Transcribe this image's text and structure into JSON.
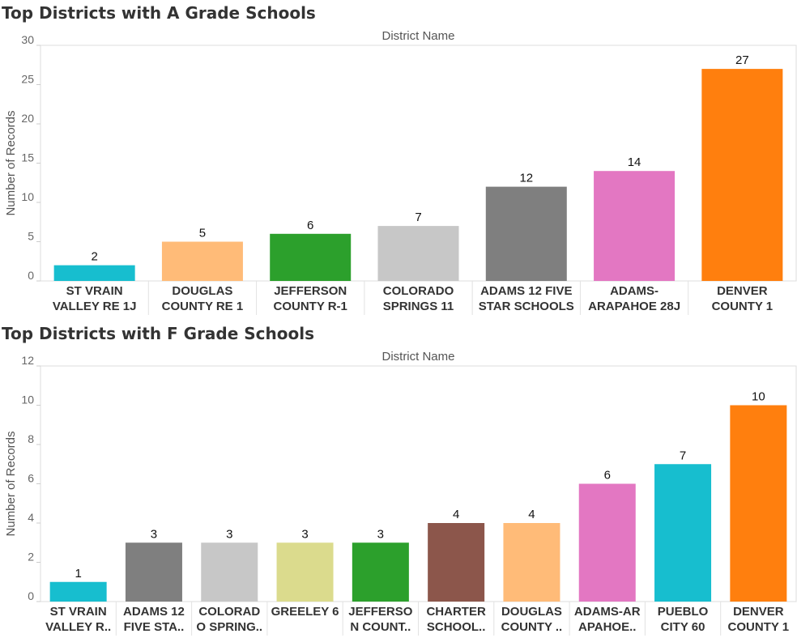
{
  "chart_data": [
    {
      "type": "bar",
      "title": "Top Districts with A Grade Schools",
      "xlabel": "District Name",
      "ylabel": "Number of Records",
      "ylim": [
        0,
        30
      ],
      "yticks": [
        0,
        5,
        10,
        15,
        20,
        25,
        30
      ],
      "grid": false,
      "categories": [
        [
          "ST VRAIN",
          "VALLEY RE 1J"
        ],
        [
          "DOUGLAS",
          "COUNTY RE 1"
        ],
        [
          "JEFFERSON",
          "COUNTY R-1"
        ],
        [
          "COLORADO",
          "SPRINGS 11"
        ],
        [
          "ADAMS 12 FIVE",
          "STAR SCHOOLS"
        ],
        [
          "ADAMS-",
          "ARAPAHOE 28J"
        ],
        [
          "DENVER",
          "COUNTY 1"
        ]
      ],
      "values": [
        2,
        5,
        6,
        7,
        12,
        14,
        27
      ],
      "colors": [
        "#17becf",
        "#ffbb78",
        "#2ca02c",
        "#c7c7c7",
        "#7f7f7f",
        "#e377c2",
        "#ff7f0e"
      ]
    },
    {
      "type": "bar",
      "title": "Top Districts with F Grade Schools",
      "xlabel": "District Name",
      "ylabel": "Number of Records",
      "ylim": [
        0,
        12
      ],
      "yticks": [
        0,
        2,
        4,
        6,
        8,
        10,
        12
      ],
      "grid": false,
      "categories": [
        [
          "ST VRAIN",
          "VALLEY R.."
        ],
        [
          "ADAMS 12",
          "FIVE STA.."
        ],
        [
          "COLORAD",
          "O SPRING.."
        ],
        [
          "GREELEY 6"
        ],
        [
          "JEFFERSO",
          "N COUNT.."
        ],
        [
          "CHARTER",
          "SCHOOL.."
        ],
        [
          "DOUGLAS",
          "COUNTY .."
        ],
        [
          "ADAMS-AR",
          "APAHOE.."
        ],
        [
          "PUEBLO",
          "CITY 60"
        ],
        [
          "DENVER",
          "COUNTY 1"
        ]
      ],
      "values": [
        1,
        3,
        3,
        3,
        3,
        4,
        4,
        6,
        7,
        10
      ],
      "colors": [
        "#17becf",
        "#7f7f7f",
        "#c7c7c7",
        "#dbdb8d",
        "#2ca02c",
        "#8c564b",
        "#ffbb78",
        "#e377c2",
        "#17becf",
        "#ff7f0e"
      ]
    }
  ]
}
